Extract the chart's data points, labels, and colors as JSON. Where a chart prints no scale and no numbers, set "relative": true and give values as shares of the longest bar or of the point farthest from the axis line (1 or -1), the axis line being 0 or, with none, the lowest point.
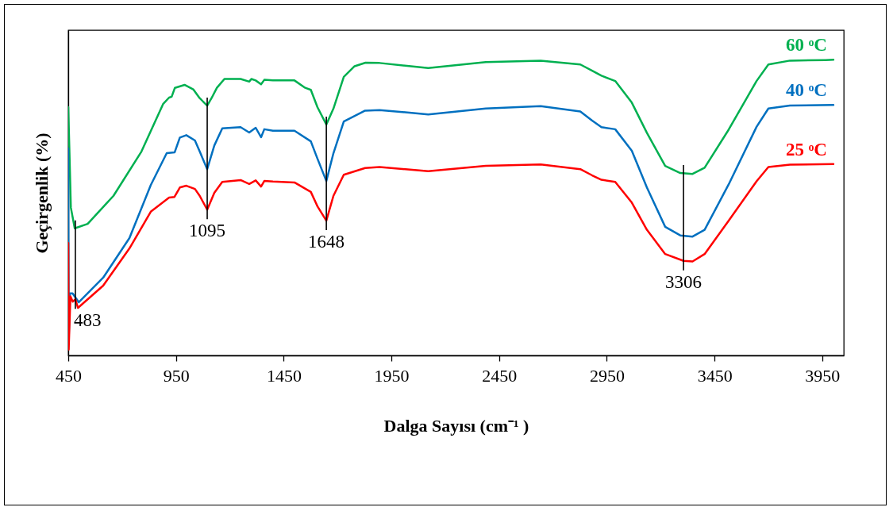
{
  "chart_data": {
    "type": "line",
    "relative": true,
    "xlabel": "Dalga Sayısı (cm⁻¹ )",
    "ylabel": "Geçirgenlik (%)",
    "xlim": [
      450,
      4050
    ],
    "xticks": [
      450,
      950,
      1450,
      1950,
      2450,
      2950,
      3450,
      3950
    ],
    "grid": false,
    "legend": false,
    "series": [
      {
        "name": "60 ᵒC",
        "color": "#00b050",
        "x": [
          450,
          455,
          462,
          480,
          540,
          660,
          790,
          890,
          918,
          930,
          945,
          990,
          1030,
          1060,
          1095,
          1115,
          1140,
          1175,
          1250,
          1290,
          1300,
          1320,
          1345,
          1360,
          1400,
          1500,
          1550,
          1576,
          1607,
          1648,
          1681,
          1729,
          1779,
          1830,
          1895,
          2121,
          2388,
          2643,
          2827,
          2882,
          2925,
          2989,
          3066,
          3136,
          3221,
          3291,
          3348,
          3404,
          3516,
          3645,
          3700,
          3800,
          3965,
          4002
        ],
        "values": [
          0.84,
          0.7,
          0.5,
          0.43,
          0.445,
          0.54,
          0.69,
          0.85,
          0.872,
          0.875,
          0.905,
          0.915,
          0.9,
          0.87,
          0.845,
          0.87,
          0.905,
          0.935,
          0.935,
          0.926,
          0.935,
          0.93,
          0.917,
          0.932,
          0.93,
          0.93,
          0.905,
          0.898,
          0.839,
          0.781,
          0.835,
          0.942,
          0.978,
          0.99,
          0.989,
          0.972,
          0.992,
          0.997,
          0.984,
          0.963,
          0.946,
          0.928,
          0.855,
          0.753,
          0.641,
          0.617,
          0.614,
          0.635,
          0.764,
          0.928,
          0.984,
          0.997,
          0.999,
          1.0
        ]
      },
      {
        "name": "40 ᵒC",
        "color": "#0070c0",
        "x": [
          450,
          452,
          458,
          470,
          499,
          612,
          734,
          833,
          907,
          944,
          968,
          998,
          1038,
          1060,
          1095,
          1128,
          1165,
          1250,
          1290,
          1320,
          1345,
          1360,
          1400,
          1500,
          1576,
          1607,
          1648,
          1681,
          1729,
          1828,
          1895,
          2121,
          2388,
          2643,
          2827,
          2882,
          2925,
          2989,
          3066,
          3136,
          3221,
          3291,
          3348,
          3404,
          3516,
          3645,
          3700,
          3800,
          4002
        ],
        "values": [
          0.7,
          0.05,
          0.21,
          0.21,
          0.18,
          0.263,
          0.397,
          0.576,
          0.684,
          0.687,
          0.737,
          0.745,
          0.727,
          0.69,
          0.63,
          0.71,
          0.768,
          0.772,
          0.754,
          0.77,
          0.738,
          0.765,
          0.76,
          0.76,
          0.724,
          0.665,
          0.59,
          0.684,
          0.791,
          0.828,
          0.83,
          0.815,
          0.835,
          0.843,
          0.825,
          0.794,
          0.772,
          0.765,
          0.692,
          0.568,
          0.435,
          0.406,
          0.402,
          0.425,
          0.579,
          0.773,
          0.835,
          0.845,
          0.847
        ]
      },
      {
        "name": "25 ᵒC",
        "color": "#ff0000",
        "x": [
          450,
          452,
          460,
          471,
          483,
          495,
          612,
          734,
          833,
          918,
          943,
          968,
          998,
          1038,
          1060,
          1095,
          1128,
          1165,
          1250,
          1290,
          1320,
          1345,
          1360,
          1400,
          1500,
          1576,
          1607,
          1648,
          1681,
          1729,
          1828,
          1895,
          2121,
          2388,
          2643,
          2827,
          2882,
          2925,
          2989,
          3066,
          3136,
          3221,
          3306,
          3348,
          3404,
          3516,
          3645,
          3700,
          3800,
          4002
        ],
        "values": [
          0.38,
          0.02,
          0.2,
          0.182,
          0.19,
          0.161,
          0.236,
          0.362,
          0.486,
          0.534,
          0.536,
          0.568,
          0.574,
          0.563,
          0.54,
          0.493,
          0.55,
          0.587,
          0.593,
          0.58,
          0.592,
          0.571,
          0.59,
          0.588,
          0.585,
          0.553,
          0.504,
          0.456,
          0.54,
          0.611,
          0.634,
          0.637,
          0.623,
          0.641,
          0.646,
          0.63,
          0.609,
          0.594,
          0.587,
          0.517,
          0.425,
          0.343,
          0.32,
          0.318,
          0.343,
          0.456,
          0.589,
          0.637,
          0.645,
          0.647
        ]
      }
    ],
    "annotations": [
      {
        "text": "483",
        "x": 483,
        "y": 0.19
      },
      {
        "text": "1095",
        "x": 1095,
        "y": 0.493
      },
      {
        "text": "1648",
        "x": 1648,
        "y": 0.456
      },
      {
        "text": "3306",
        "x": 3306,
        "y": 0.32
      }
    ]
  }
}
